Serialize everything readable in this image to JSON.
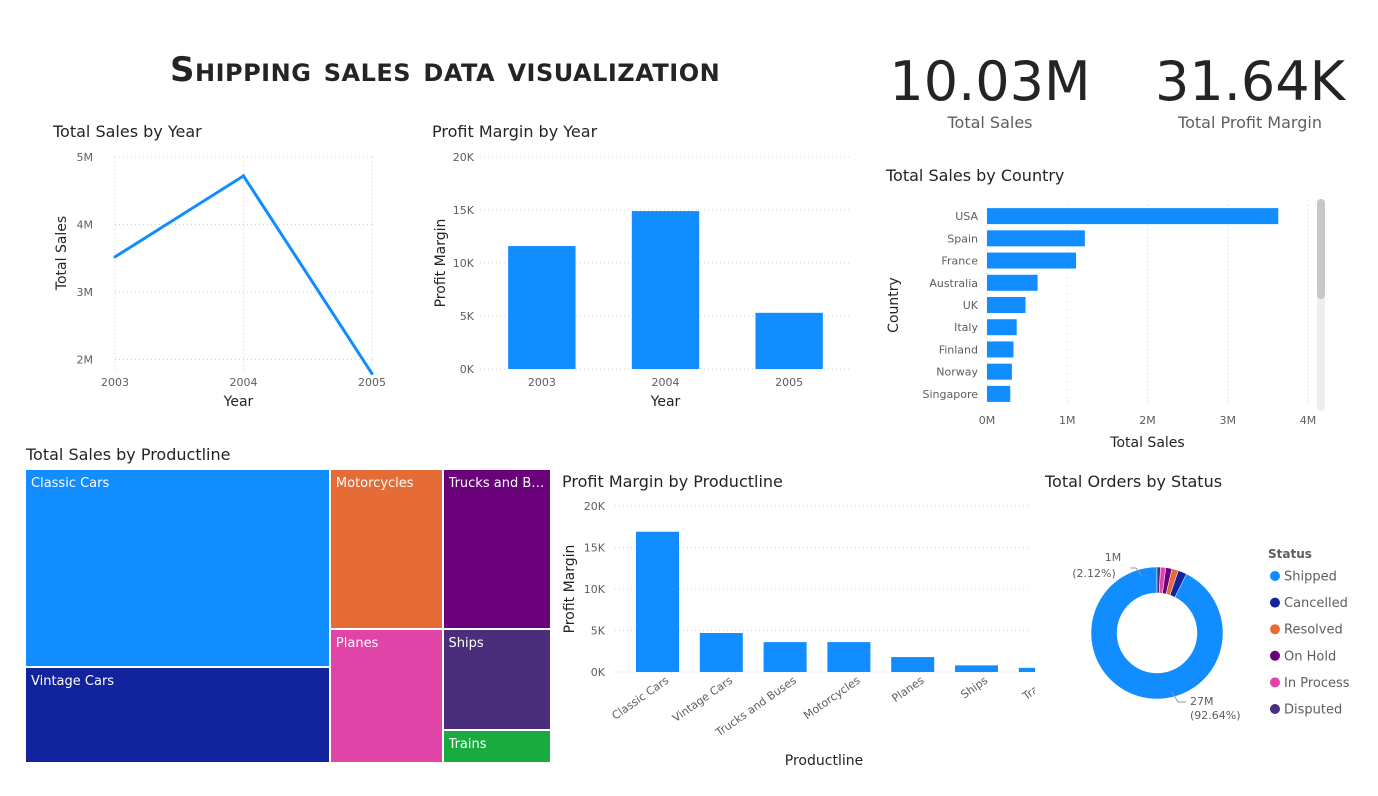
{
  "page": {
    "title": "Shipping sales data visualization"
  },
  "cards": [
    {
      "value": "10.03M",
      "label": "Total Sales"
    },
    {
      "value": "31.64K",
      "label": "Total Profit Margin"
    }
  ],
  "colors": {
    "primary": "#118DFF",
    "grid": "#d0d0d0",
    "axis_text": "#605e5c"
  },
  "chart_data": [
    {
      "id": "sales_by_year",
      "type": "line",
      "title": "Total Sales by Year",
      "xlabel": "Year",
      "ylabel": "Total Sales",
      "x": [
        "2003",
        "2004",
        "2005"
      ],
      "values": [
        3.52,
        4.72,
        1.79
      ],
      "ylim": [
        1.8,
        5
      ],
      "yticks": [
        2,
        3,
        4,
        5
      ],
      "ytick_labels": [
        "2M",
        "3M",
        "4M",
        "5M"
      ],
      "unit": "M",
      "grid": true
    },
    {
      "id": "profit_by_year",
      "type": "bar",
      "title": "Profit Margin by Year",
      "xlabel": "Year",
      "ylabel": "Profit Margin",
      "categories": [
        "2003",
        "2004",
        "2005"
      ],
      "values": [
        11600,
        14900,
        5300
      ],
      "ylim": [
        0,
        20000
      ],
      "yticks": [
        0,
        5000,
        10000,
        15000,
        20000
      ],
      "ytick_labels": [
        "0K",
        "5K",
        "10K",
        "15K",
        "20K"
      ],
      "grid": true
    },
    {
      "id": "sales_by_country",
      "type": "bar",
      "orientation": "horizontal",
      "title": "Total Sales by Country",
      "xlabel": "Total Sales",
      "ylabel": "Country",
      "categories": [
        "USA",
        "Spain",
        "France",
        "Australia",
        "UK",
        "Italy",
        "Finland",
        "Norway",
        "Singapore"
      ],
      "values": [
        3.63,
        1.22,
        1.11,
        0.63,
        0.48,
        0.37,
        0.33,
        0.31,
        0.29
      ],
      "xlim": [
        0,
        4
      ],
      "xticks": [
        0,
        1,
        2,
        3,
        4
      ],
      "xtick_labels": [
        "0M",
        "1M",
        "2M",
        "3M",
        "4M"
      ],
      "unit": "M",
      "grid": true
    },
    {
      "id": "sales_by_productline",
      "type": "treemap",
      "title": "Total Sales by Productline",
      "labels": [
        "Classic Cars",
        "Vintage Cars",
        "Motorcycles",
        "Planes",
        "Trucks and Buses",
        "Ships",
        "Trains"
      ],
      "display_labels": [
        "Classic Cars",
        "Vintage Cars",
        "Motorcycles",
        "Planes",
        "Trucks and Bu...",
        "Ships",
        "Trains"
      ],
      "values": [
        3.92,
        1.9,
        1.17,
        0.98,
        1.13,
        0.71,
        0.23
      ],
      "unit": "M",
      "colors": [
        "#118DFF",
        "#12239E",
        "#E66C37",
        "#E044A7",
        "#6B007B",
        "#4A2E7C",
        "#1AAB40"
      ]
    },
    {
      "id": "profit_by_productline",
      "type": "bar",
      "title": "Profit Margin by Productline",
      "xlabel": "Productline",
      "ylabel": "Profit Margin",
      "categories": [
        "Classic Cars",
        "Vintage Cars",
        "Trucks and Buses",
        "Motorcycles",
        "Planes",
        "Ships",
        "Trains"
      ],
      "values": [
        16900,
        4700,
        3600,
        3600,
        1800,
        800,
        500
      ],
      "ylim": [
        0,
        20000
      ],
      "yticks": [
        0,
        5000,
        10000,
        15000,
        20000
      ],
      "ytick_labels": [
        "0K",
        "5K",
        "10K",
        "15K",
        "20K"
      ],
      "grid": true
    },
    {
      "id": "orders_by_status",
      "type": "pie",
      "donut": true,
      "title": "Total Orders by Status",
      "legend_title": "Status",
      "legend_position": "right",
      "labels": [
        "Shipped",
        "Cancelled",
        "Resolved",
        "On Hold",
        "In Process",
        "Disputed"
      ],
      "values": [
        92.64,
        2.12,
        1.6,
        1.5,
        1.3,
        0.84
      ],
      "colors": [
        "#118DFF",
        "#12239E",
        "#E66C37",
        "#6B007B",
        "#E044A7",
        "#4A2E7C"
      ],
      "annotations": [
        {
          "value": "27M",
          "percent": "(92.64%)"
        },
        {
          "value": "1M",
          "percent": "(2.12%)"
        }
      ]
    }
  ]
}
